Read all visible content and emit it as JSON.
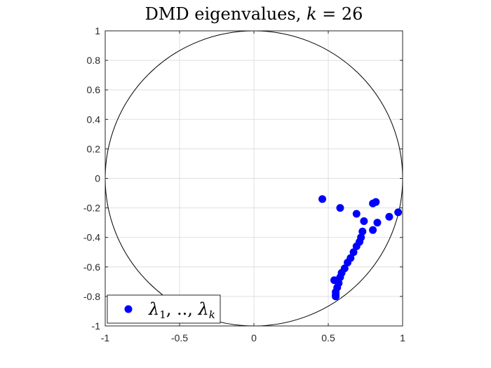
{
  "chart_data": {
    "type": "scatter",
    "title": "DMD eigenvalues, k = 26",
    "xlabel": "",
    "ylabel": "",
    "xlim": [
      -1,
      1
    ],
    "ylim": [
      -1,
      1
    ],
    "xticks": [
      -1,
      -0.5,
      0,
      0.5,
      1
    ],
    "xtick_labels": [
      "-1",
      "-0.5",
      "0",
      "0.5",
      "1"
    ],
    "yticks": [
      1,
      0.8,
      0.6,
      0.4,
      0.2,
      0,
      -0.2,
      -0.4,
      -0.6,
      -0.8,
      -1
    ],
    "ytick_labels": [
      "1",
      "0.8",
      "0.6",
      "0.4",
      "0.2",
      "0",
      "-0.2",
      "-0.4",
      "-0.6",
      "-0.8",
      "-1"
    ],
    "grid": true,
    "unit_circle": true,
    "legend": {
      "label": "λ1, .., λk",
      "location": "bottom-left"
    },
    "series": [
      {
        "name": "λ1, .., λk",
        "color": "#0000ff",
        "points": [
          {
            "x": 0.46,
            "y": -0.14
          },
          {
            "x": 0.58,
            "y": -0.2
          },
          {
            "x": 0.69,
            "y": -0.24
          },
          {
            "x": 0.8,
            "y": -0.17
          },
          {
            "x": 0.82,
            "y": -0.16
          },
          {
            "x": 0.97,
            "y": -0.23
          },
          {
            "x": 0.91,
            "y": -0.26
          },
          {
            "x": 0.83,
            "y": -0.3
          },
          {
            "x": 0.74,
            "y": -0.29
          },
          {
            "x": 0.8,
            "y": -0.35
          },
          {
            "x": 0.73,
            "y": -0.36
          },
          {
            "x": 0.72,
            "y": -0.4
          },
          {
            "x": 0.71,
            "y": -0.43
          },
          {
            "x": 0.69,
            "y": -0.46
          },
          {
            "x": 0.67,
            "y": -0.5
          },
          {
            "x": 0.65,
            "y": -0.54
          },
          {
            "x": 0.63,
            "y": -0.57
          },
          {
            "x": 0.61,
            "y": -0.61
          },
          {
            "x": 0.59,
            "y": -0.64
          },
          {
            "x": 0.58,
            "y": -0.67
          },
          {
            "x": 0.54,
            "y": -0.69
          },
          {
            "x": 0.57,
            "y": -0.71
          },
          {
            "x": 0.56,
            "y": -0.74
          },
          {
            "x": 0.55,
            "y": -0.77
          },
          {
            "x": 0.55,
            "y": -0.79
          },
          {
            "x": 0.55,
            "y": -0.8
          }
        ]
      }
    ]
  }
}
